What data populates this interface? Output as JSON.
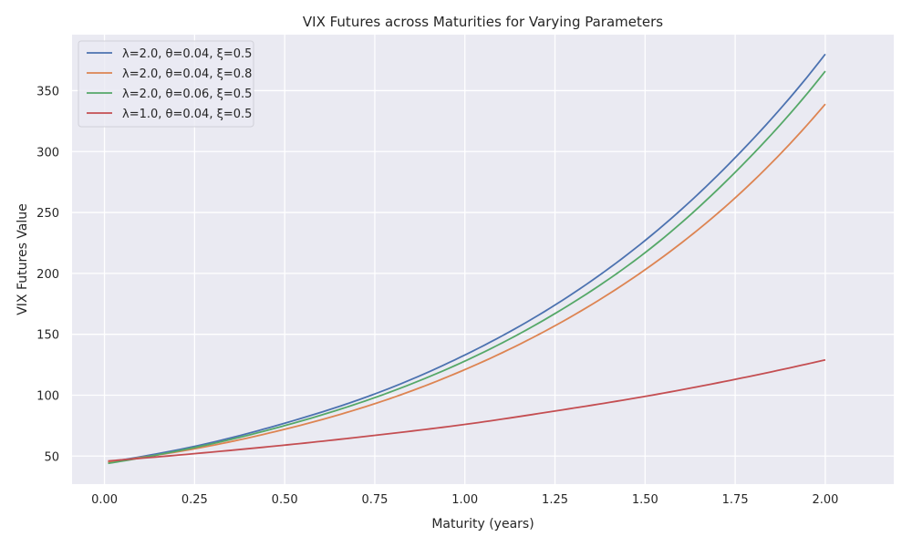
{
  "chart_data": {
    "type": "line",
    "title": "VIX Futures across Maturities for Varying Parameters",
    "xlabel": "Maturity (years)",
    "ylabel": "VIX Futures Value",
    "xlim": [
      -0.09,
      2.19
    ],
    "ylim": [
      27,
      396
    ],
    "xticks": [
      "0.00",
      "0.25",
      "0.50",
      "0.75",
      "1.00",
      "1.25",
      "1.50",
      "1.75",
      "2.00"
    ],
    "yticks": [
      "50",
      "100",
      "150",
      "200",
      "250",
      "300",
      "350"
    ],
    "grid": true,
    "legend_position": "top-left",
    "background_color": "#eaeaf2",
    "grid_color": "#ffffff",
    "x": [
      0.01,
      0.25,
      0.5,
      0.75,
      1.0,
      1.25,
      1.5,
      1.75,
      2.0
    ],
    "series": [
      {
        "name": "λ=2.0, θ=0.04, ξ=0.5",
        "color": "#4c72b0",
        "values": [
          45,
          58,
          77,
          101,
          133,
          174,
          227,
          295,
          380
        ]
      },
      {
        "name": "λ=2.0, θ=0.04, ξ=0.8",
        "color": "#dd8452",
        "values": [
          45,
          56,
          72,
          93,
          121,
          157,
          203,
          262,
          339
        ]
      },
      {
        "name": "λ=2.0, θ=0.06, ξ=0.5",
        "color": "#55a868",
        "values": [
          44,
          57,
          75,
          98,
          128,
          167,
          217,
          283,
          366
        ]
      },
      {
        "name": "λ=1.0, θ=0.04, ξ=0.5",
        "color": "#c44e52",
        "values": [
          46,
          52,
          59,
          67,
          76,
          87,
          99,
          113,
          129
        ]
      }
    ]
  }
}
